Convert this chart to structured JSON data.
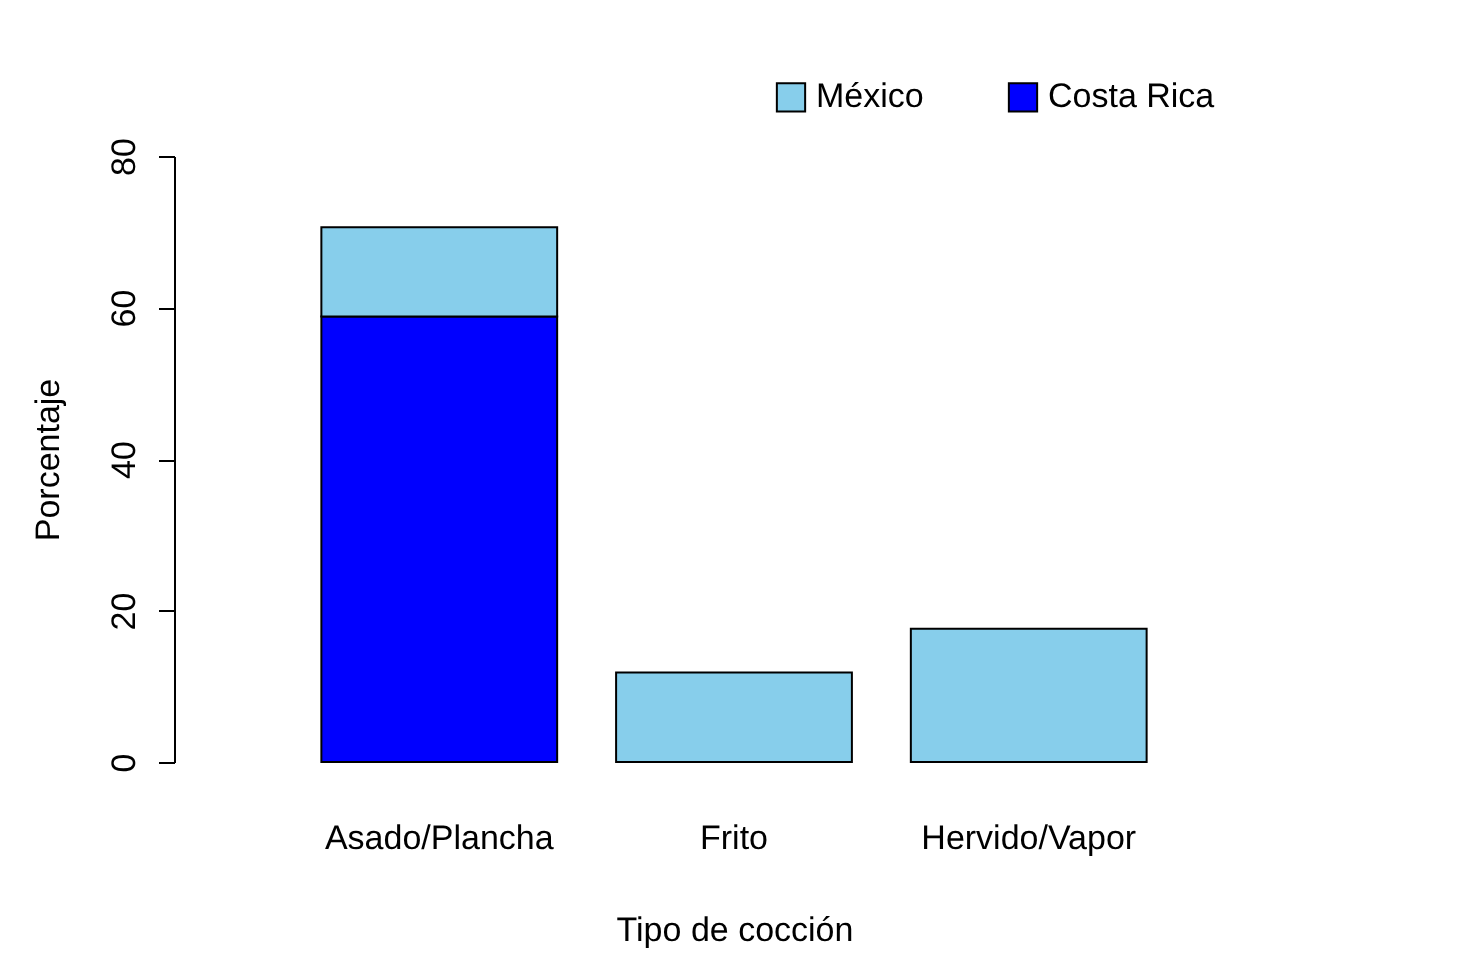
{
  "chart_data": {
    "type": "bar",
    "stacked": true,
    "xlabel": "Tipo de cocción",
    "ylabel": "Porcentaje",
    "categories": [
      "Asado/Plancha",
      "Frito",
      "Hervido/Vapor"
    ],
    "series": [
      {
        "name": "Costa Rica",
        "color": "#0000ff",
        "values": [
          58.8,
          null,
          null
        ]
      },
      {
        "name": "México",
        "color": "#87ceeb",
        "values": [
          11.8,
          11.8,
          17.6
        ]
      }
    ],
    "ylim": [
      0,
      80
    ],
    "yticks": [
      0,
      20,
      40,
      60,
      80
    ],
    "grid": false,
    "legend": "top right"
  }
}
